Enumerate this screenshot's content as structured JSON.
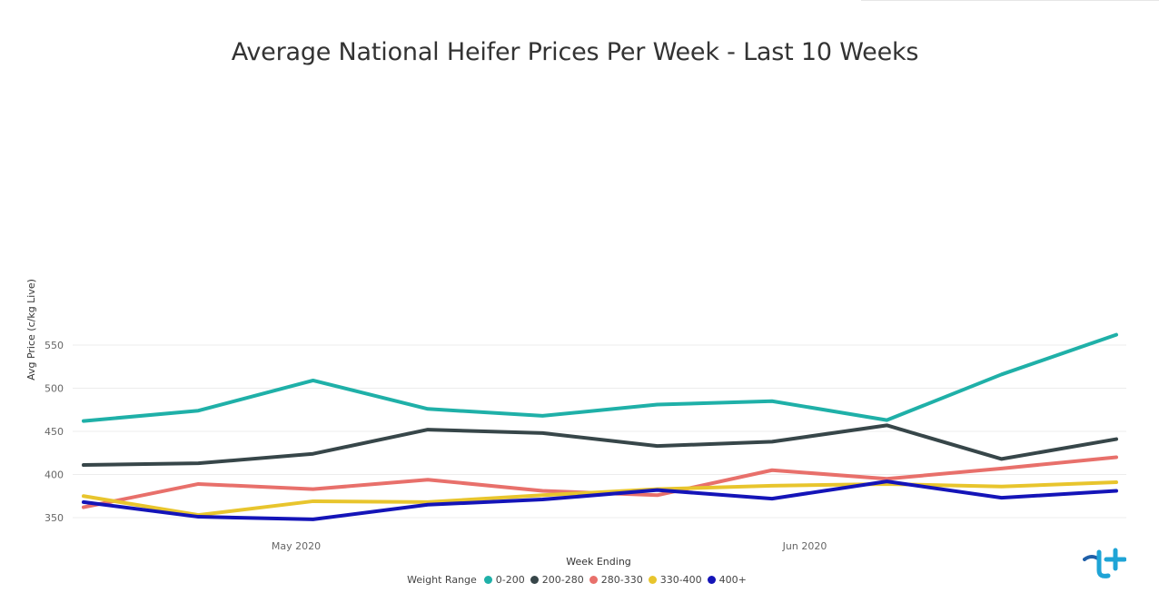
{
  "chart_data": {
    "type": "line",
    "title": "Average National Heifer Prices Per Week - Last 10 Weeks",
    "xlabel": "Week Ending",
    "ylabel": "Avg Price (c/kg Live)",
    "ylim": [
      350,
      550
    ],
    "yticks": [
      "350",
      "400",
      "450",
      "500",
      "550"
    ],
    "xticks": [
      "May 2020",
      "Jun 2020"
    ],
    "points_count": 10,
    "grid": true,
    "legend_title": "Weight Range",
    "legend_position": "bottom-center",
    "series": [
      {
        "name": "0-200",
        "color": "#1fb0a8",
        "values": [
          462,
          474,
          509,
          476,
          468,
          481,
          485,
          463,
          516,
          562
        ]
      },
      {
        "name": "200-280",
        "color": "#374649",
        "values": [
          411,
          413,
          424,
          452,
          448,
          433,
          438,
          457,
          418,
          441
        ]
      },
      {
        "name": "280-330",
        "color": "#e8706b",
        "values": [
          362,
          389,
          383,
          394,
          381,
          376,
          405,
          395,
          407,
          420
        ]
      },
      {
        "name": "330-400",
        "color": "#e8c52d",
        "values": [
          375,
          353,
          369,
          368,
          376,
          383,
          387,
          389,
          386,
          391
        ]
      },
      {
        "name": "400+",
        "color": "#1414b8",
        "values": [
          368,
          351,
          348,
          365,
          371,
          382,
          372,
          392,
          373,
          381
        ]
      }
    ]
  },
  "logo": {
    "name": "brand-logo",
    "color": "#1fa4d6"
  }
}
